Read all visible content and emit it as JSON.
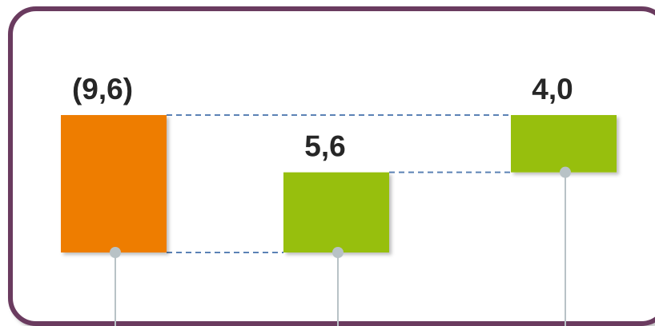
{
  "chart_data": {
    "type": "waterfall-bar",
    "categories": [
      "",
      "",
      ""
    ],
    "values": [
      -9.6,
      5.6,
      4.0
    ],
    "data_labels": [
      "(9,6)",
      "5,6",
      "4,0"
    ],
    "title": "",
    "xlabel": "",
    "ylabel": "",
    "ylim": [
      -9.6,
      0
    ],
    "grid": false,
    "legend": "none",
    "colors": {
      "negative": "#ee7d00",
      "positive": "#97bf0d",
      "connector": "#5b82b5",
      "leader": "#b8c2c6",
      "frame": "#6b3a5e"
    }
  }
}
